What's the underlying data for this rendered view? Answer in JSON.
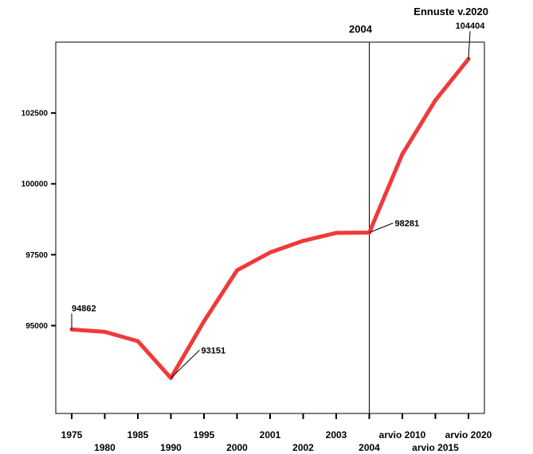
{
  "chart_data": {
    "type": "line",
    "categories": [
      "1975",
      "1980",
      "1985",
      "1990",
      "1995",
      "2000",
      "2001",
      "2002",
      "2003",
      "2004",
      "arvio 2010",
      "arvio 2015",
      "arvio 2020"
    ],
    "series": [
      {
        "values": [
          94862,
          94780,
          94450,
          93151,
          95150,
          96950,
          97580,
          97990,
          98270,
          98281,
          101050,
          102950,
          104404
        ],
        "color": "#f03a3a"
      }
    ],
    "y_ticks": [
      95000,
      97500,
      100000,
      102500
    ],
    "y_tick_labels": [
      "95000",
      "97500",
      "100000",
      "102500"
    ],
    "ylim": [
      91900,
      105000
    ],
    "data_labels": [
      {
        "index": 0,
        "text": "94862"
      },
      {
        "index": 3,
        "text": "93151"
      },
      {
        "index": 9,
        "text": "98281"
      },
      {
        "index": 12,
        "text": "104404"
      }
    ],
    "vline": {
      "index": 9,
      "label": "2004"
    },
    "corner_annotation": "Ennuste v.2020",
    "grid": false,
    "legend": "none"
  }
}
